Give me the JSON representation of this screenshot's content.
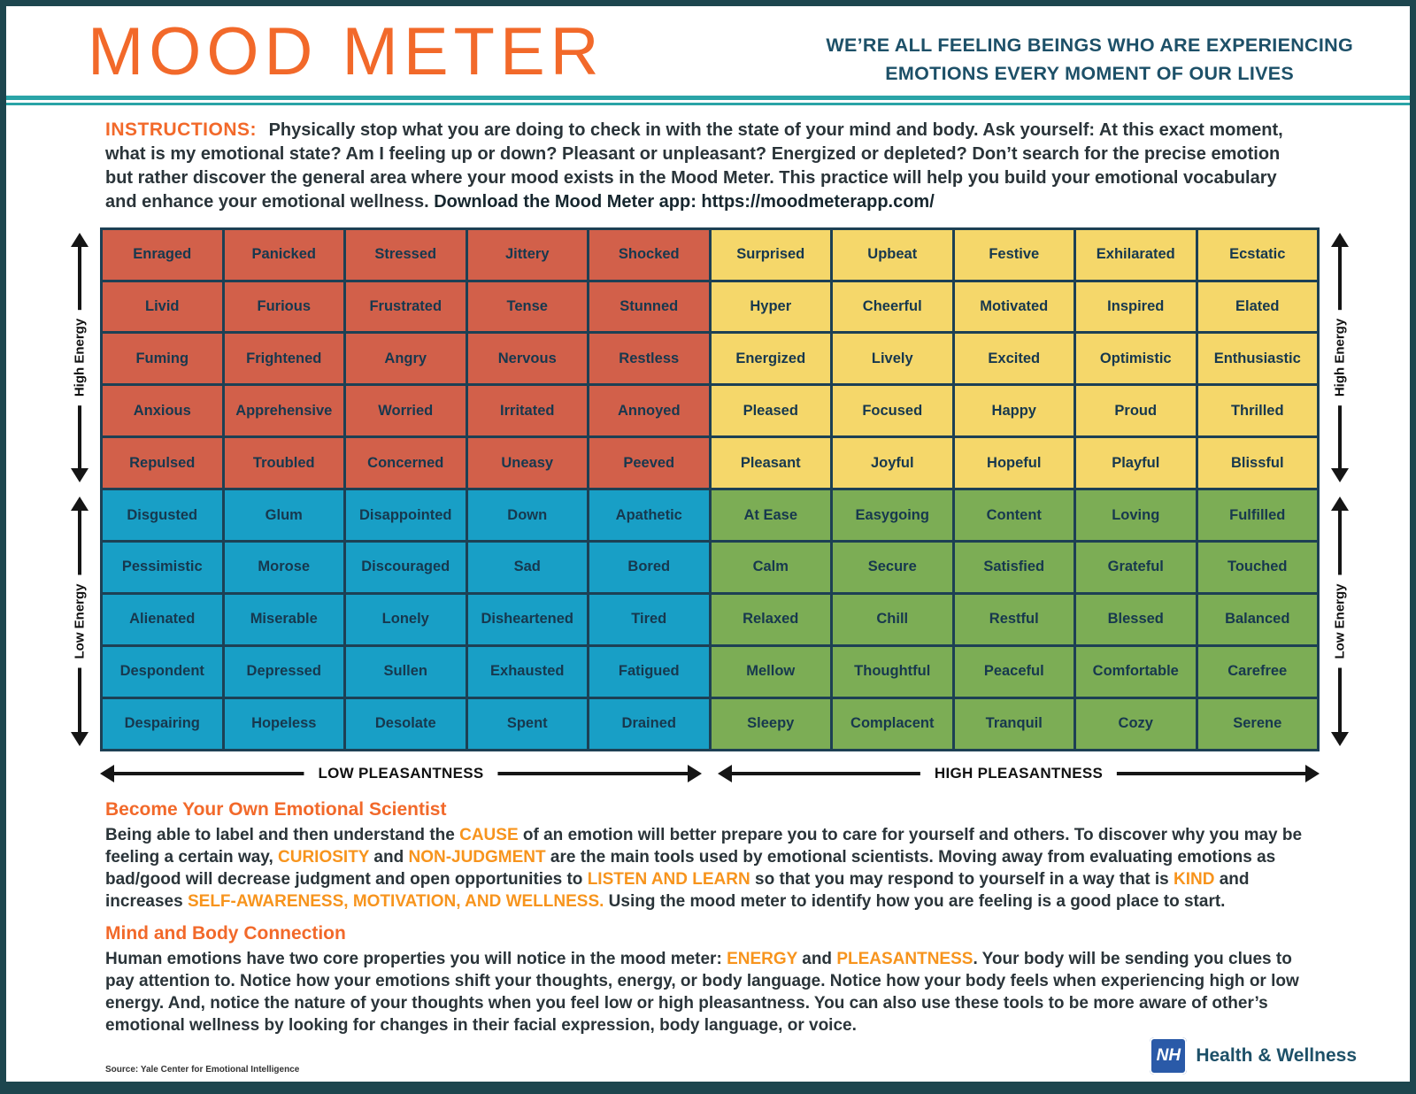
{
  "header": {
    "title": "MOOD METER",
    "tagline": [
      "WE’RE ALL FEELING BEINGS WHO ARE EXPERIENCING",
      "EMOTIONS EVERY MOMENT OF OUR LIVES"
    ]
  },
  "instructions": {
    "label": "INSTRUCTIONS:",
    "body": "Physically stop what you are doing to check in with the state of your mind and body. Ask yourself: At this exact moment, what is my emotional state? Am I feeling up or down? Pleasant or unpleasant? Energized or depleted?  Don’t search for the precise emotion but rather discover the general area where your mood exists in the Mood Meter. This practice will help you build your emotional vocabulary and enhance your emotional wellness. ",
    "download": "Download the Mood Meter app: https://moodmeterapp.com/"
  },
  "grid": {
    "axis": {
      "high_energy": "High Energy",
      "low_energy": "Low Energy",
      "low_pleasantness": "LOW PLEASANTNESS",
      "high_pleasantness": "HIGH PLEASANTNESS"
    },
    "rows": [
      [
        "Enraged",
        "Panicked",
        "Stressed",
        "Jittery",
        "Shocked",
        "Surprised",
        "Upbeat",
        "Festive",
        "Exhilarated",
        "Ecstatic"
      ],
      [
        "Livid",
        "Furious",
        "Frustrated",
        "Tense",
        "Stunned",
        "Hyper",
        "Cheerful",
        "Motivated",
        "Inspired",
        "Elated"
      ],
      [
        "Fuming",
        "Frightened",
        "Angry",
        "Nervous",
        "Restless",
        "Energized",
        "Lively",
        "Excited",
        "Optimistic",
        "Enthusiastic"
      ],
      [
        "Anxious",
        "Apprehensive",
        "Worried",
        "Irritated",
        "Annoyed",
        "Pleased",
        "Focused",
        "Happy",
        "Proud",
        "Thrilled"
      ],
      [
        "Repulsed",
        "Troubled",
        "Concerned",
        "Uneasy",
        "Peeved",
        "Pleasant",
        "Joyful",
        "Hopeful",
        "Playful",
        "Blissful"
      ],
      [
        "Disgusted",
        "Glum",
        "Disappointed",
        "Down",
        "Apathetic",
        "At Ease",
        "Easygoing",
        "Content",
        "Loving",
        "Fulfilled"
      ],
      [
        "Pessimistic",
        "Morose",
        "Discouraged",
        "Sad",
        "Bored",
        "Calm",
        "Secure",
        "Satisfied",
        "Grateful",
        "Touched"
      ],
      [
        "Alienated",
        "Miserable",
        "Lonely",
        "Disheartened",
        "Tired",
        "Relaxed",
        "Chill",
        "Restful",
        "Blessed",
        "Balanced"
      ],
      [
        "Despondent",
        "Depressed",
        "Sullen",
        "Exhausted",
        "Fatigued",
        "Mellow",
        "Thoughtful",
        "Peaceful",
        "Comfortable",
        "Carefree"
      ],
      [
        "Despairing",
        "Hopeless",
        "Desolate",
        "Spent",
        "Drained",
        "Sleepy",
        "Complacent",
        "Tranquil",
        "Cozy",
        "Serene"
      ]
    ]
  },
  "sections": [
    {
      "heading": "Become Your Own Emotional Scientist",
      "segments": [
        {
          "t": "Being able to label and then understand the ",
          "h": false
        },
        {
          "t": "CAUSE",
          "h": true
        },
        {
          "t": " of an emotion will better prepare you to care for yourself and others. To discover why you may be feeling a certain way, ",
          "h": false
        },
        {
          "t": "CURIOSITY",
          "h": true
        },
        {
          "t": " and ",
          "h": false
        },
        {
          "t": "NON-JUDGMENT",
          "h": true
        },
        {
          "t": " are the main tools used by emotional scientists. Moving away from evaluating emotions as bad/good will decrease judgment and open opportunities to ",
          "h": false
        },
        {
          "t": "LISTEN AND LEARN",
          "h": true
        },
        {
          "t": " so that you may respond to yourself in a way that is ",
          "h": false
        },
        {
          "t": "KIND",
          "h": true
        },
        {
          "t": " and increases ",
          "h": false
        },
        {
          "t": "SELF-AWARENESS, MOTIVATION, AND WELLNESS.",
          "h": true
        },
        {
          "t": " Using the mood meter to identify how you are feeling is a good place to start.",
          "h": false
        }
      ]
    },
    {
      "heading": "Mind and Body Connection",
      "segments": [
        {
          "t": "Human emotions have two core properties you will notice in the mood meter: ",
          "h": false
        },
        {
          "t": "ENERGY",
          "h": true
        },
        {
          "t": " and ",
          "h": false
        },
        {
          "t": "PLEASANTNESS",
          "h": true
        },
        {
          "t": ". Your body will be sending you clues to pay attention to. Notice how your emotions shift your thoughts, energy, or body language. Notice how your body feels when experiencing high or low energy. And, notice the nature of your thoughts when you feel low or high pleasantness. You can also use these tools to be more aware of other’s emotional wellness by looking for changes in their facial expression, body language, or voice.",
          "h": false
        }
      ]
    }
  ],
  "footer": {
    "source": "Source: Yale Center for Emotional Intelligence",
    "logo_text": "NH",
    "brand": "Health & Wellness"
  },
  "colors": {
    "orange": "#f2692a",
    "highlight_orange": "#f7941d",
    "navy": "#1d5068",
    "teal": "#2aa4a7",
    "grid_line": "#1d4054",
    "quadrant_red": "#d2604a",
    "quadrant_yellow": "#f5d76a",
    "quadrant_blue": "#189fc6",
    "quadrant_green": "#7cad55"
  }
}
